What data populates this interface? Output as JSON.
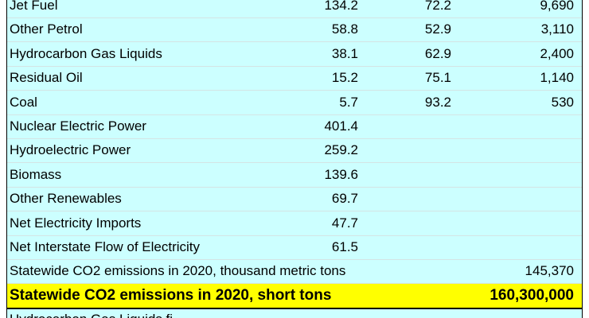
{
  "table": {
    "rows": [
      [
        "Jet Fuel",
        "134.2",
        "72.2",
        "9,690"
      ],
      [
        "Other Petrol",
        "58.8",
        "52.9",
        "3,110"
      ],
      [
        "Hydrocarbon Gas Liquids",
        "38.1",
        "62.9",
        "2,400"
      ],
      [
        "Residual Oil",
        "15.2",
        "75.1",
        "1,140"
      ],
      [
        "Coal",
        "5.7",
        "93.2",
        "530"
      ],
      [
        "Nuclear Electric Power",
        "401.4",
        null,
        null
      ],
      [
        "Hydroelectric Power",
        "259.2",
        null,
        null
      ],
      [
        "Biomass",
        "139.6",
        null,
        null
      ],
      [
        "Other Renewables",
        "69.7",
        null,
        null
      ],
      [
        "Net Electricity Imports",
        "47.7",
        null,
        null
      ],
      [
        "Net Interstate Flow of Electricity",
        "61.5",
        null,
        null
      ],
      [
        "Statewide CO2 emissions in 2020, thousand metric tons",
        null,
        null,
        "145,370"
      ],
      [
        "Statewide CO2 emissions in 2020, short tons",
        null,
        null,
        "160,300,000"
      ],
      [
        "Hydrocarbon Gas Liquids fi",
        null,
        null,
        null
      ]
    ]
  }
}
